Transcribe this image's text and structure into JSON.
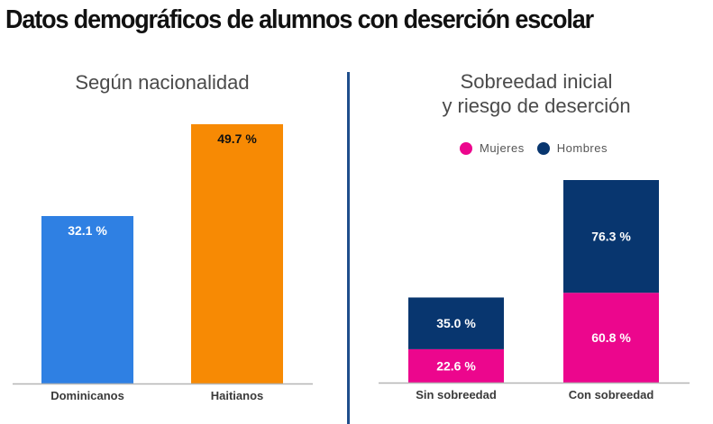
{
  "title": "Datos demográficos de alumnos con deserción escolar",
  "chart_data": [
    {
      "type": "bar",
      "title": "Según nacionalidad",
      "categories": [
        "Dominicanos",
        "Haitianos"
      ],
      "values": [
        32.1,
        49.7
      ],
      "value_labels": [
        "32.1 %",
        "49.7 %"
      ],
      "colors": [
        "#2f80e3",
        "#f78a04"
      ],
      "label_colors": [
        "#ffffff",
        "#111111"
      ],
      "ylim": [
        0,
        55
      ],
      "xlabel": "",
      "ylabel": "",
      "grid": false
    },
    {
      "type": "bar",
      "stacked": true,
      "title_lines": [
        "Sobreedad inicial",
        "y riesgo de deserción"
      ],
      "categories": [
        "Sin sobreedad",
        "Con sobreedad"
      ],
      "series": [
        {
          "name": "Mujeres",
          "values": [
            22.6,
            60.8
          ],
          "labels": [
            "22.6 %",
            "60.8 %"
          ],
          "color": "#ec068d"
        },
        {
          "name": "Hombres",
          "values": [
            35.0,
            76.3
          ],
          "labels": [
            "35.0 %",
            "76.3 %"
          ],
          "color": "#08366f"
        }
      ],
      "ylim": [
        0,
        150
      ],
      "legend": "top-center",
      "grid": false
    }
  ]
}
